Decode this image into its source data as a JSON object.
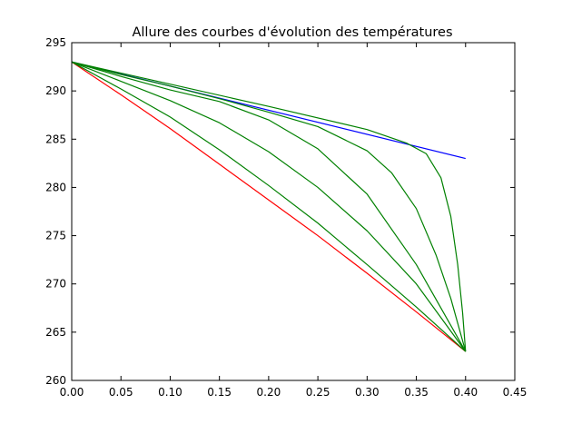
{
  "chart_data": {
    "type": "line",
    "title": "Allure des courbes d'évolution des températures",
    "xlabel": "",
    "ylabel": "",
    "xlim": [
      0.0,
      0.45
    ],
    "ylim": [
      260,
      295
    ],
    "x_ticks": [
      0.0,
      0.05,
      0.1,
      0.15,
      0.2,
      0.25,
      0.3,
      0.35,
      0.4,
      0.45
    ],
    "x_tick_labels": [
      "0.00",
      "0.05",
      "0.10",
      "0.15",
      "0.20",
      "0.25",
      "0.30",
      "0.35",
      "0.40",
      "0.45"
    ],
    "y_ticks": [
      260,
      265,
      270,
      275,
      280,
      285,
      290,
      295
    ],
    "y_tick_labels": [
      "260",
      "265",
      "270",
      "275",
      "280",
      "285",
      "290",
      "295"
    ],
    "grid": false,
    "legend": "none",
    "series": [
      {
        "color": "#0000ff",
        "x": [
          0.0,
          0.4
        ],
        "y": [
          293,
          283
        ]
      },
      {
        "color": "#ff0000",
        "x": [
          0.0,
          0.05,
          0.1,
          0.15,
          0.2,
          0.25,
          0.3,
          0.35,
          0.4
        ],
        "y": [
          293,
          289.6,
          286.1,
          282.4,
          278.7,
          275.0,
          271.1,
          267.1,
          263
        ]
      },
      {
        "color": "#008000",
        "x": [
          0.0,
          0.05,
          0.1,
          0.15,
          0.2,
          0.25,
          0.3,
          0.35,
          0.4
        ],
        "y": [
          293,
          290.2,
          287.3,
          283.9,
          280.2,
          276.3,
          272.0,
          267.6,
          263
        ]
      },
      {
        "color": "#008000",
        "x": [
          0.0,
          0.05,
          0.1,
          0.15,
          0.2,
          0.25,
          0.3,
          0.35,
          0.375,
          0.4
        ],
        "y": [
          293,
          291.0,
          289.0,
          286.7,
          283.7,
          280.0,
          275.5,
          270.0,
          266.5,
          263
        ]
      },
      {
        "color": "#008000",
        "x": [
          0.0,
          0.05,
          0.1,
          0.15,
          0.2,
          0.25,
          0.3,
          0.35,
          0.375,
          0.4
        ],
        "y": [
          293,
          291.5,
          290.1,
          288.9,
          287.0,
          284.0,
          279.3,
          272.0,
          267.5,
          263
        ]
      },
      {
        "color": "#008000",
        "x": [
          0.0,
          0.05,
          0.1,
          0.15,
          0.2,
          0.25,
          0.3,
          0.325,
          0.35,
          0.37,
          0.385,
          0.4
        ],
        "y": [
          293,
          291.7,
          290.5,
          289.2,
          287.8,
          286.3,
          283.8,
          281.5,
          277.8,
          273.0,
          268.5,
          263
        ]
      },
      {
        "color": "#008000",
        "x": [
          0.0,
          0.1,
          0.2,
          0.3,
          0.34,
          0.36,
          0.375,
          0.385,
          0.392,
          0.397,
          0.4
        ],
        "y": [
          293,
          290.7,
          288.4,
          286.0,
          284.6,
          283.5,
          281.0,
          277.0,
          272.0,
          267.0,
          263
        ]
      }
    ]
  }
}
